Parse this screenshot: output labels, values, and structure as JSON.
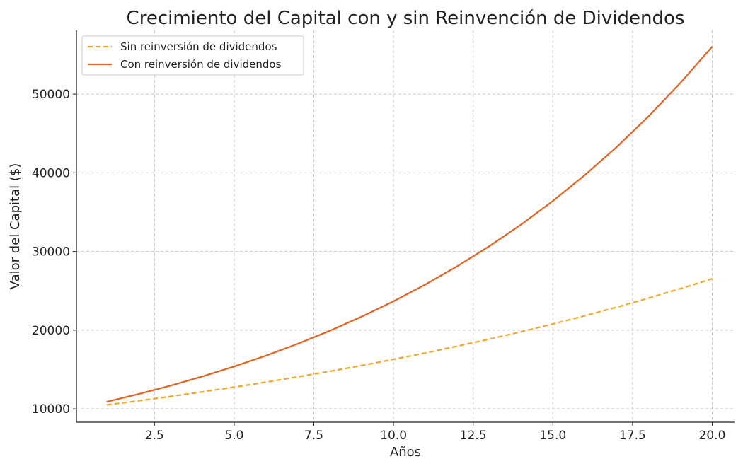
{
  "chart_data": {
    "type": "line",
    "title": "Crecimiento del Capital con y sin Reinvención de Dividendos",
    "xlabel": "Años",
    "ylabel": "Valor del Capital ($)",
    "xlim": [
      0.05,
      20.7
    ],
    "ylim": [
      8300,
      58100
    ],
    "grid": true,
    "legend_position": "top-left",
    "x_ticks": [
      2.5,
      5.0,
      7.5,
      10.0,
      12.5,
      15.0,
      17.5,
      20.0
    ],
    "x_tick_labels": [
      "2.5",
      "5.0",
      "7.5",
      "10.0",
      "12.5",
      "15.0",
      "17.5",
      "20.0"
    ],
    "y_ticks": [
      10000,
      20000,
      30000,
      40000,
      50000
    ],
    "y_tick_labels": [
      "10000",
      "20000",
      "30000",
      "40000",
      "50000"
    ],
    "x": [
      1,
      2,
      3,
      4,
      5,
      6,
      7,
      8,
      9,
      10,
      11,
      12,
      13,
      14,
      15,
      16,
      17,
      18,
      19,
      20
    ],
    "series": [
      {
        "name": "Sin reinversión de dividendos",
        "color": "#f5a623",
        "dash": "dashed",
        "values": [
          10500,
          11025,
          11576,
          12155,
          12763,
          13401,
          14071,
          14775,
          15513,
          16289,
          17103,
          17959,
          18856,
          19799,
          20789,
          21829,
          22920,
          24066,
          25270,
          26533
        ]
      },
      {
        "name": "Con reinversión de dividendos",
        "color": "#e8601c",
        "dash": "solid",
        "values": [
          10900,
          11881,
          12950,
          14116,
          15386,
          16771,
          18280,
          19926,
          21719,
          23674,
          25804,
          28127,
          30658,
          33417,
          36425,
          39703,
          43276,
          47171,
          51417,
          56044
        ]
      }
    ]
  }
}
